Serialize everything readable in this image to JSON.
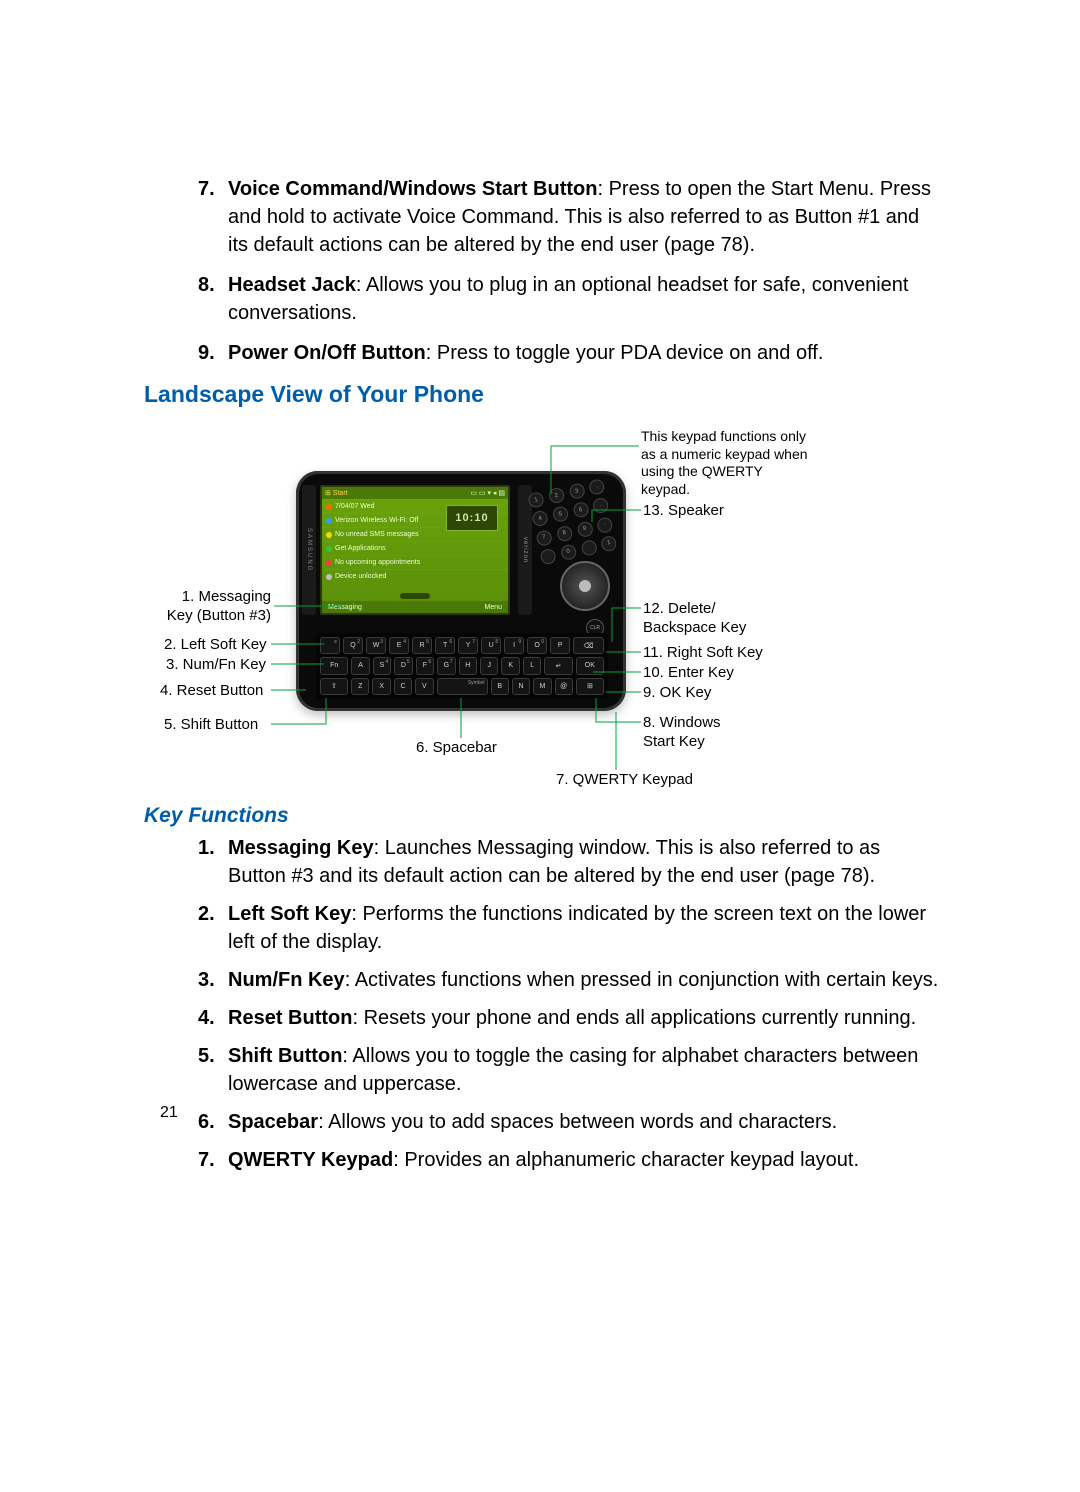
{
  "topList": [
    {
      "n": "7.",
      "label": "Voice Command/Windows Start Button",
      "text": ": Press to open the Start Menu. Press and hold to activate Voice Command. This is also referred to as Button #1 and its default actions can be altered by the end user (page 78)."
    },
    {
      "n": "8.",
      "label": "Headset Jack",
      "text": ": Allows you to plug in an optional headset for safe, convenient conversations."
    },
    {
      "n": "9.",
      "label": "Power On/Off Button",
      "text": ": Press to toggle your PDA device on and off."
    }
  ],
  "heading1": "Landscape View of Your Phone",
  "topNote": "This keypad functions only as a numeric keypad when using the QWERTY keypad.",
  "leftCallouts": [
    {
      "text": "1. Messaging\nKey (Button #3)"
    },
    {
      "text": "2. Left Soft Key"
    },
    {
      "text": "3. Num/Fn Key"
    },
    {
      "text": "4. Reset Button"
    },
    {
      "text": "5. Shift Button"
    }
  ],
  "rightCallouts": [
    {
      "text": "13. Speaker"
    },
    {
      "text": "12. Delete/\nBackspace Key"
    },
    {
      "text": "11. Right Soft Key"
    },
    {
      "text": "10. Enter Key"
    },
    {
      "text": "9. OK Key"
    },
    {
      "text": "8. Windows\nStart Key"
    }
  ],
  "bottomCallouts": [
    {
      "text": "6. Spacebar"
    },
    {
      "text": "7. QWERTY Keypad"
    }
  ],
  "screen": {
    "start": "⊞ Start",
    "icons": "▭ ▭ ▾ ◂ ▤",
    "clock": "10:10",
    "rows": [
      "7/04/07 Wed",
      "Verizon Wireless  Wi-Fi: Off",
      "No unread SMS messages",
      "Get Applications",
      "No upcoming appointments",
      "Device unlocked"
    ],
    "softL": "Messaging",
    "softR": "Menu"
  },
  "numpad": [
    "1",
    "2",
    "3",
    "·",
    "4",
    "5",
    "6",
    "·",
    "7",
    "8",
    "9",
    "·",
    "",
    "0",
    "",
    "1"
  ],
  "okclr": [
    "CLR",
    "OK"
  ],
  "kbd": {
    "r1": [
      [
        "",
        "≡"
      ],
      [
        "Q",
        "2"
      ],
      [
        "W",
        "3"
      ],
      [
        "E",
        "4"
      ],
      [
        "R",
        "5"
      ],
      [
        "T",
        "6"
      ],
      [
        "Y",
        "7"
      ],
      [
        "U",
        "8"
      ],
      [
        "I",
        "9"
      ],
      [
        "O",
        "0"
      ],
      [
        "P",
        ""
      ],
      [
        "⌫",
        ""
      ]
    ],
    "r2": [
      [
        "Fn",
        ""
      ],
      [
        "A",
        ""
      ],
      [
        "S",
        "4"
      ],
      [
        "D",
        "5"
      ],
      [
        "F",
        "6"
      ],
      [
        "G",
        "7"
      ],
      [
        "H",
        ""
      ],
      [
        "J",
        ""
      ],
      [
        "K",
        ""
      ],
      [
        "L",
        ""
      ],
      [
        "↵",
        ""
      ],
      [
        "OK",
        ""
      ]
    ],
    "r3": [
      [
        "⇧",
        ""
      ],
      [
        "Z",
        ""
      ],
      [
        "X",
        ""
      ],
      [
        "C",
        ""
      ],
      [
        "V",
        ""
      ],
      [
        "Space",
        "Symbol"
      ],
      [
        "B",
        ""
      ],
      [
        "N",
        ""
      ],
      [
        "M",
        ""
      ],
      [
        "@",
        ""
      ],
      [
        "⊞",
        ""
      ]
    ]
  },
  "heading2": "Key Functions",
  "bottomList": [
    {
      "n": "1.",
      "label": "Messaging Key",
      "text": ": Launches Messaging window. This is also referred to as Button #3 and its default action can be altered by the end user (page 78)."
    },
    {
      "n": "2.",
      "label": "Left Soft Key",
      "text": ": Performs the functions indicated by the screen text on the lower left of the display."
    },
    {
      "n": "3.",
      "label": "Num/Fn Key",
      "text": ": Activates functions when pressed in conjunction with certain keys."
    },
    {
      "n": "4.",
      "label": "Reset Button",
      "text": ": Resets your phone and ends all applications currently running."
    },
    {
      "n": "5.",
      "label": "Shift Button",
      "text": ": Allows you to toggle the casing for alphabet characters between lowercase and uppercase."
    },
    {
      "n": "6.",
      "label": "Spacebar",
      "text": ": Allows you to add spaces between words and characters."
    },
    {
      "n": "7.",
      "label": "QWERTY Keypad",
      "text": ": Provides an alphanumeric character keypad layout."
    }
  ],
  "pageNum": "21",
  "colors": {
    "accent": "#005DAA",
    "leader": "#00a040"
  }
}
